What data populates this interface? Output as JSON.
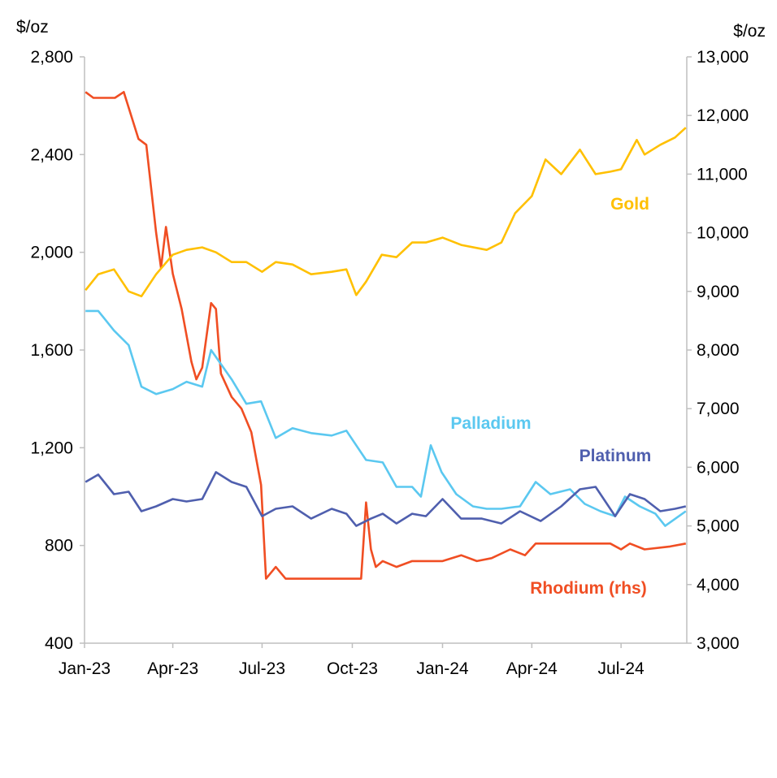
{
  "chart_data": {
    "type": "line",
    "title": "",
    "y_left": {
      "label": "$/oz",
      "range": [
        400,
        2800
      ],
      "ticks": [
        400,
        800,
        1200,
        1600,
        2000,
        2400,
        2800
      ],
      "tick_labels": [
        "400",
        "800",
        "1,200",
        "1,600",
        "2,000",
        "2,400",
        "2,800"
      ]
    },
    "y_right": {
      "label": "$/oz",
      "range": [
        3000,
        13000
      ],
      "ticks": [
        3000,
        4000,
        5000,
        6000,
        7000,
        8000,
        9000,
        10000,
        11000,
        12000,
        13000
      ],
      "tick_labels": [
        "3,000",
        "4,000",
        "5,000",
        "6,000",
        "7,000",
        "8,000",
        "9,000",
        "10,000",
        "11,000",
        "12,000",
        "13,000"
      ]
    },
    "x_axis": {
      "range": [
        "2023-01-01",
        "2024-09-06"
      ],
      "ticks": [
        "2023-01-01",
        "2023-04-01",
        "2023-07-01",
        "2023-10-01",
        "2024-01-01",
        "2024-04-01",
        "2024-07-01"
      ],
      "tick_labels": [
        "Jan-23",
        "Apr-23",
        "Jul-23",
        "Oct-23",
        "Jan-24",
        "Apr-24",
        "Jul-24"
      ]
    },
    "grid": false,
    "legend": "inline labels",
    "series": [
      {
        "name": "Gold",
        "axis": "left",
        "color": "#FFC000",
        "x": [
          "2023-01-02",
          "2023-01-15",
          "2023-01-31",
          "2023-02-15",
          "2023-02-28",
          "2023-03-15",
          "2023-04-01",
          "2023-04-15",
          "2023-05-01",
          "2023-05-15",
          "2023-05-31",
          "2023-06-15",
          "2023-07-01",
          "2023-07-15",
          "2023-08-01",
          "2023-08-20",
          "2023-09-10",
          "2023-09-25",
          "2023-10-05",
          "2023-10-15",
          "2023-10-31",
          "2023-11-15",
          "2023-12-01",
          "2023-12-15",
          "2024-01-01",
          "2024-01-20",
          "2024-02-15",
          "2024-03-01",
          "2024-03-15",
          "2024-04-01",
          "2024-04-15",
          "2024-05-01",
          "2024-05-20",
          "2024-06-05",
          "2024-06-20",
          "2024-07-01",
          "2024-07-17",
          "2024-07-25",
          "2024-08-10",
          "2024-08-25",
          "2024-09-05"
        ],
        "y": [
          1845,
          1910,
          1930,
          1840,
          1820,
          1910,
          1990,
          2010,
          2020,
          2000,
          1960,
          1960,
          1920,
          1960,
          1950,
          1910,
          1920,
          1930,
          1825,
          1880,
          1990,
          1980,
          2040,
          2040,
          2060,
          2030,
          2010,
          2040,
          2160,
          2230,
          2380,
          2320,
          2420,
          2320,
          2330,
          2340,
          2460,
          2400,
          2440,
          2470,
          2510
        ]
      },
      {
        "name": "Palladium",
        "axis": "left",
        "color": "#5BC8F0",
        "x": [
          "2023-01-02",
          "2023-01-15",
          "2023-01-31",
          "2023-02-15",
          "2023-02-28",
          "2023-03-15",
          "2023-04-01",
          "2023-04-15",
          "2023-05-01",
          "2023-05-10",
          "2023-05-31",
          "2023-06-15",
          "2023-06-30",
          "2023-07-15",
          "2023-08-01",
          "2023-08-20",
          "2023-09-10",
          "2023-09-25",
          "2023-10-15",
          "2023-11-01",
          "2023-11-15",
          "2023-12-01",
          "2023-12-10",
          "2023-12-20",
          "2023-12-31",
          "2024-01-15",
          "2024-02-01",
          "2024-02-15",
          "2024-03-01",
          "2024-03-20",
          "2024-04-05",
          "2024-04-20",
          "2024-05-10",
          "2024-05-25",
          "2024-06-10",
          "2024-06-25",
          "2024-07-05",
          "2024-07-20",
          "2024-08-05",
          "2024-08-15",
          "2024-09-05"
        ],
        "y": [
          1760,
          1760,
          1680,
          1620,
          1450,
          1420,
          1440,
          1470,
          1450,
          1600,
          1480,
          1380,
          1390,
          1240,
          1280,
          1260,
          1250,
          1270,
          1150,
          1140,
          1040,
          1040,
          1000,
          1210,
          1100,
          1010,
          960,
          950,
          950,
          960,
          1060,
          1010,
          1030,
          970,
          940,
          920,
          1000,
          960,
          930,
          880,
          940
        ]
      },
      {
        "name": "Platinum",
        "axis": "left",
        "color": "#4F5FAE",
        "x": [
          "2023-01-02",
          "2023-01-15",
          "2023-01-31",
          "2023-02-15",
          "2023-02-28",
          "2023-03-15",
          "2023-04-01",
          "2023-04-15",
          "2023-05-01",
          "2023-05-15",
          "2023-05-31",
          "2023-06-15",
          "2023-07-01",
          "2023-07-15",
          "2023-08-01",
          "2023-08-20",
          "2023-09-10",
          "2023-09-25",
          "2023-10-05",
          "2023-10-20",
          "2023-11-01",
          "2023-11-15",
          "2023-12-01",
          "2023-12-15",
          "2024-01-01",
          "2024-01-20",
          "2024-02-10",
          "2024-03-01",
          "2024-03-20",
          "2024-04-10",
          "2024-05-01",
          "2024-05-20",
          "2024-06-05",
          "2024-06-25",
          "2024-07-10",
          "2024-07-25",
          "2024-08-10",
          "2024-08-25",
          "2024-09-05"
        ],
        "y": [
          1060,
          1090,
          1010,
          1020,
          940,
          960,
          990,
          980,
          990,
          1100,
          1060,
          1040,
          920,
          950,
          960,
          910,
          950,
          930,
          880,
          910,
          930,
          890,
          930,
          920,
          990,
          910,
          910,
          890,
          940,
          900,
          960,
          1030,
          1040,
          920,
          1010,
          990,
          940,
          950,
          960
        ]
      },
      {
        "name": "Rhodium (rhs)",
        "axis": "right",
        "color": "#F04E23",
        "x": [
          "2023-01-02",
          "2023-01-10",
          "2023-02-01",
          "2023-02-10",
          "2023-02-25",
          "2023-03-05",
          "2023-03-15",
          "2023-03-20",
          "2023-03-25",
          "2023-04-01",
          "2023-04-10",
          "2023-04-20",
          "2023-04-25",
          "2023-05-01",
          "2023-05-10",
          "2023-05-15",
          "2023-05-20",
          "2023-05-31",
          "2023-06-10",
          "2023-06-20",
          "2023-06-30",
          "2023-07-05",
          "2023-07-15",
          "2023-07-25",
          "2023-08-15",
          "2023-09-15",
          "2023-10-10",
          "2023-10-15",
          "2023-10-20",
          "2023-10-25",
          "2023-11-01",
          "2023-11-15",
          "2023-12-01",
          "2023-12-15",
          "2024-01-01",
          "2024-01-20",
          "2024-02-05",
          "2024-02-20",
          "2024-03-10",
          "2024-03-25",
          "2024-04-05",
          "2024-04-20",
          "2024-05-20",
          "2024-06-20",
          "2024-07-01",
          "2024-07-10",
          "2024-07-25",
          "2024-08-20",
          "2024-09-05"
        ],
        "y": [
          12400,
          12300,
          12300,
          12400,
          11600,
          11500,
          10000,
          9400,
          10100,
          9300,
          8700,
          7800,
          7500,
          7700,
          8800,
          8700,
          7600,
          7200,
          7000,
          6600,
          5700,
          4100,
          4300,
          4100,
          4100,
          4100,
          4100,
          5400,
          4600,
          4300,
          4400,
          4300,
          4400,
          4400,
          4400,
          4500,
          4400,
          4450,
          4600,
          4500,
          4700,
          4700,
          4700,
          4700,
          4600,
          4700,
          4600,
          4650,
          4700
        ]
      }
    ]
  }
}
